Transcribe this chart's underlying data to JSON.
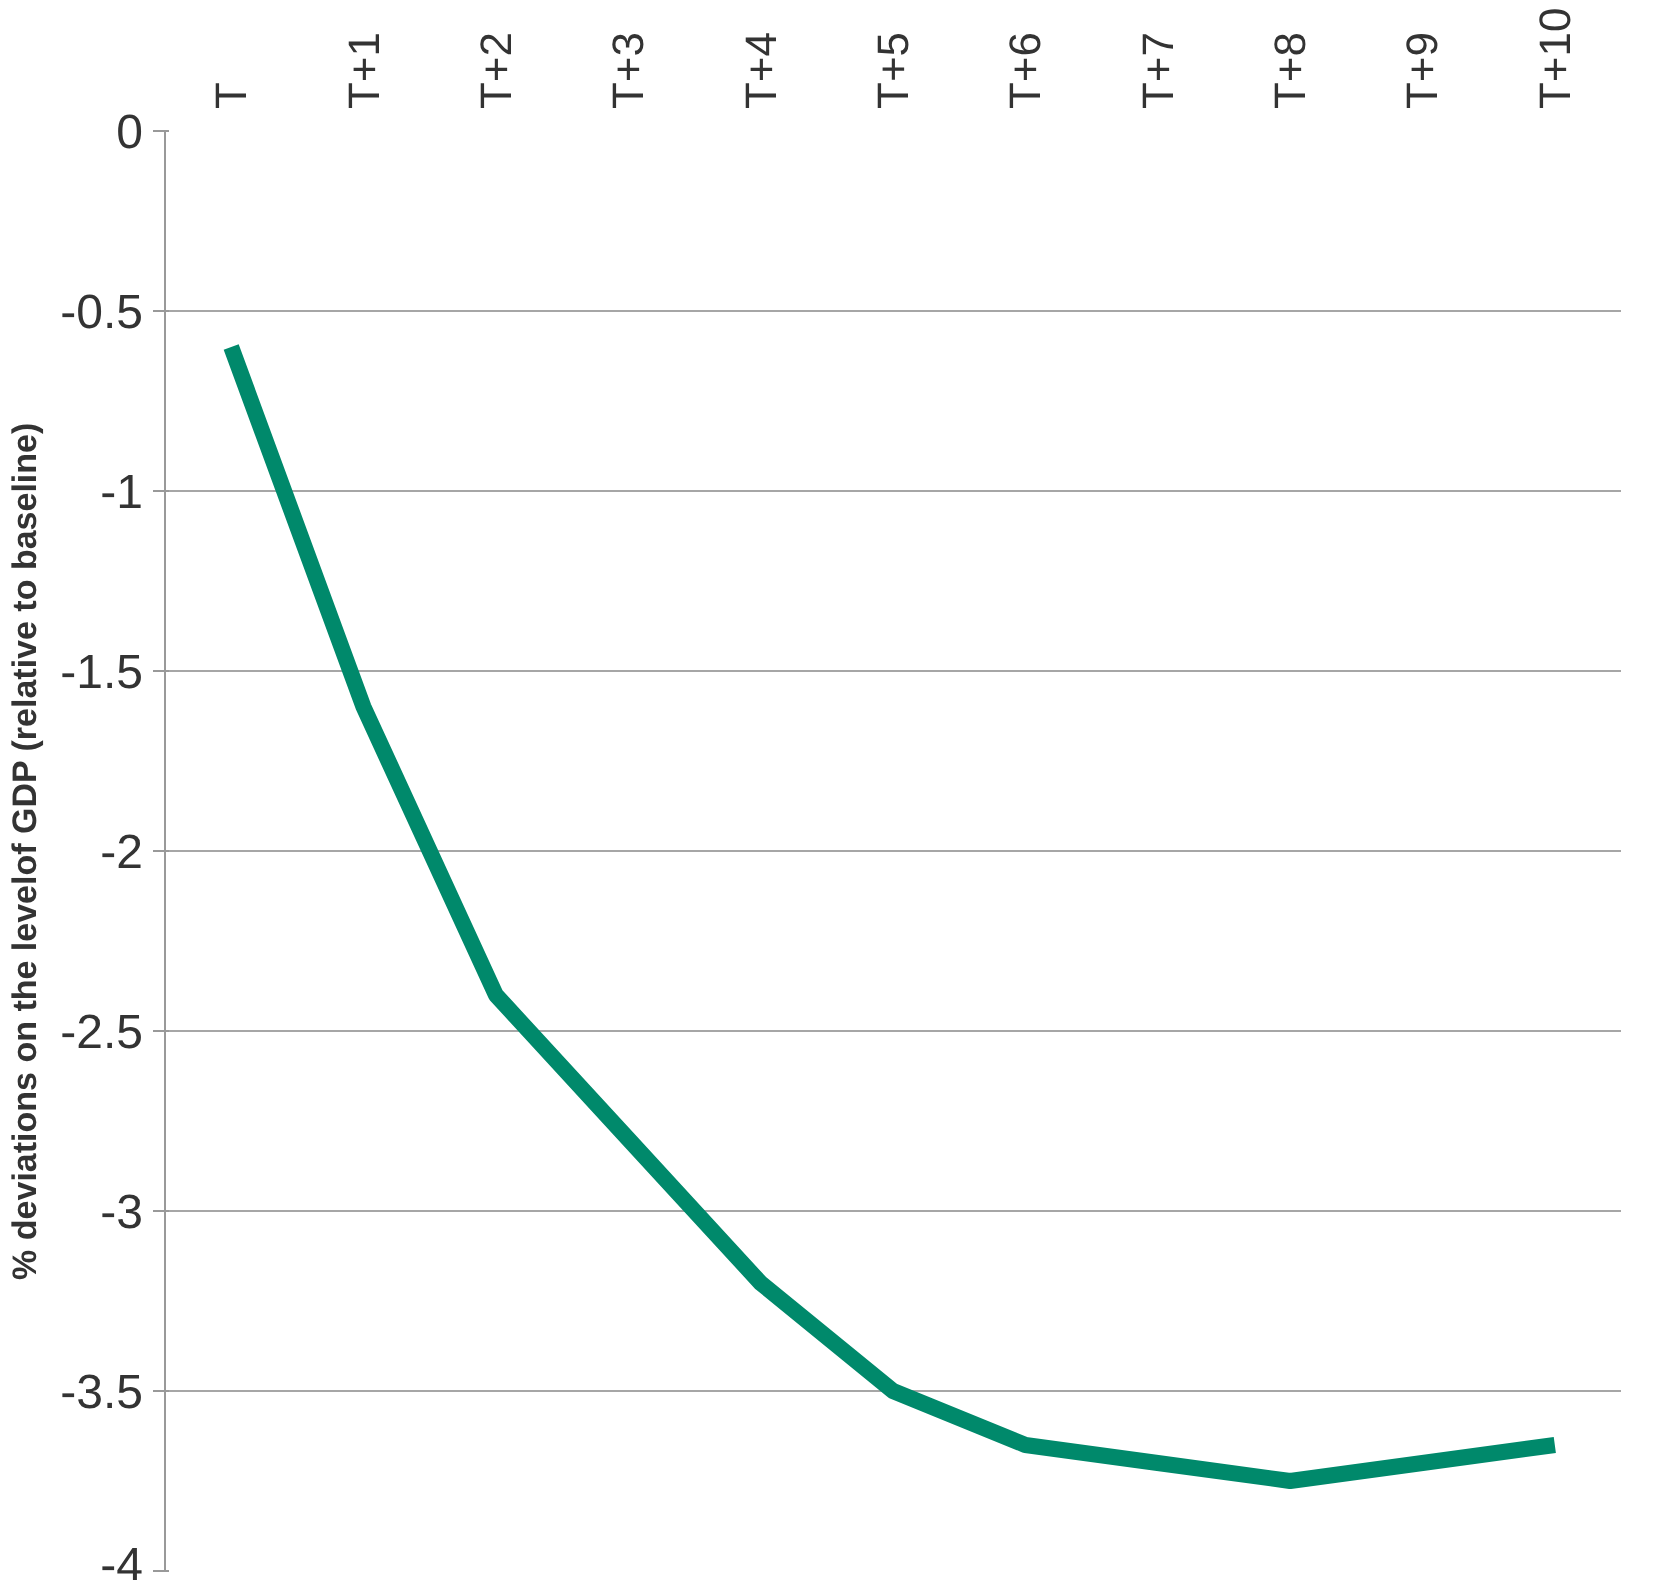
{
  "chart_data": {
    "type": "line",
    "ylabel": "% deviations on the levelof GDP (relative to baseline)",
    "categories": [
      "T",
      "T+1",
      "T+2",
      "T+3",
      "T+4",
      "T+5",
      "T+6",
      "T+7",
      "T+8",
      "T+9",
      "T+10"
    ],
    "series": [
      {
        "color": "#00896b",
        "values": [
          -0.6,
          -1.6,
          -2.4,
          -2.8,
          -3.2,
          -3.5,
          -3.65,
          -3.7,
          -3.75,
          -3.7,
          -3.65
        ]
      }
    ],
    "ylim": [
      -4,
      0
    ],
    "yticks": [
      -4,
      -3.5,
      -3,
      -2.5,
      -2,
      -1.5,
      -1,
      -0.5,
      0
    ],
    "grid": "y",
    "line_style": "solid",
    "marker": "none"
  }
}
